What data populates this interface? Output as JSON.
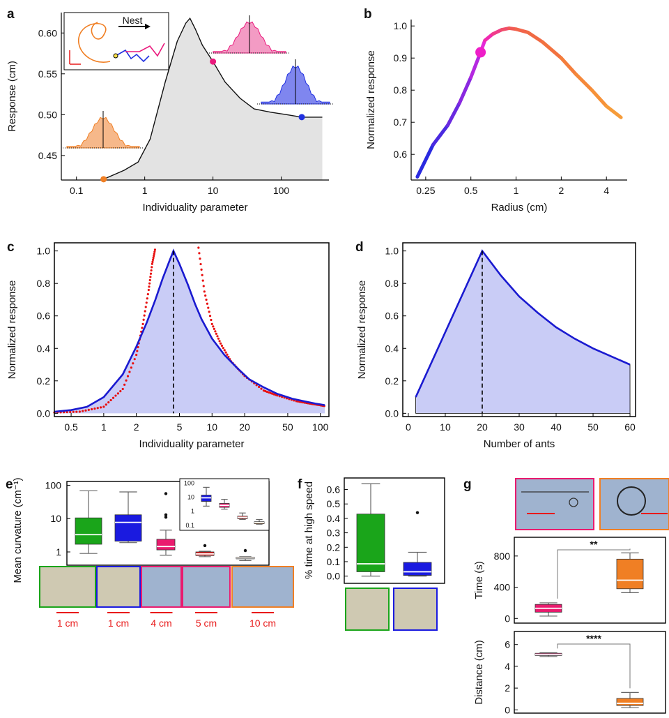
{
  "chart_data": [
    {
      "panel": "a",
      "type": "area",
      "xlabel": "Individuality parameter",
      "ylabel": "Response (cm)",
      "x_scale": "log",
      "x_ticks": [
        "0.1",
        "1",
        "10",
        "100"
      ],
      "y_ticks": [
        "0.45",
        "0.50",
        "0.55",
        "0.60"
      ],
      "xlim": [
        0.06,
        500
      ],
      "ylim": [
        0.42,
        0.625
      ],
      "series": [
        {
          "x": [
            0.25,
            0.5,
            0.8,
            1.2,
            2,
            3,
            4,
            4.6,
            5.5,
            7,
            10,
            15,
            25,
            40,
            70,
            120,
            200,
            400
          ],
          "y": [
            0.421,
            0.432,
            0.442,
            0.47,
            0.54,
            0.59,
            0.612,
            0.618,
            0.605,
            0.585,
            0.565,
            0.54,
            0.52,
            0.507,
            0.503,
            0.5,
            0.497,
            0.497
          ]
        }
      ],
      "markers": [
        {
          "x": 0.25,
          "y": 0.421,
          "color": "#f07f24"
        },
        {
          "x": 10,
          "y": 0.565,
          "color": "#ea1a7d"
        },
        {
          "x": 200,
          "y": 0.497,
          "color": "#2030e0"
        }
      ],
      "inset_label": "Nest"
    },
    {
      "panel": "b",
      "type": "line",
      "xlabel": "Radius (cm)",
      "ylabel": "Normalized response",
      "x_scale": "log",
      "x_ticks": [
        "0.25",
        "0.5",
        "1",
        "2",
        "4"
      ],
      "y_ticks": [
        "0.6",
        "0.7",
        "0.8",
        "0.9",
        "1.0"
      ],
      "xlim": [
        0.2,
        5.5
      ],
      "ylim": [
        0.52,
        1.02
      ],
      "series": [
        {
          "x": [
            0.22,
            0.28,
            0.35,
            0.42,
            0.5,
            0.58,
            0.62,
            0.7,
            0.8,
            0.9,
            1.0,
            1.2,
            1.5,
            2.0,
            2.5,
            3.2,
            4.0,
            5.0
          ],
          "y": [
            0.53,
            0.63,
            0.69,
            0.76,
            0.84,
            0.918,
            0.955,
            0.975,
            0.988,
            0.993,
            0.99,
            0.98,
            0.95,
            0.9,
            0.85,
            0.8,
            0.75,
            0.715
          ]
        }
      ],
      "marker": {
        "x": 0.58,
        "y": 0.918,
        "color": "#ee1ec8"
      }
    },
    {
      "panel": "c",
      "type": "area",
      "xlabel": "Individuality parameter",
      "ylabel": "Normalized response",
      "x_scale": "log",
      "x_ticks": [
        "0.5",
        "1",
        "2",
        "5",
        "10",
        "20",
        "50",
        "100"
      ],
      "y_ticks": [
        "0.0",
        "0.2",
        "0.4",
        "0.6",
        "0.8",
        "1.0"
      ],
      "xlim": [
        0.35,
        120
      ],
      "ylim": [
        -0.02,
        1.05
      ],
      "series": [
        {
          "color": "#1a1ad0",
          "x": [
            0.35,
            0.5,
            0.7,
            1,
            1.5,
            2,
            2.5,
            3,
            3.5,
            4,
            4.4,
            5,
            6,
            7,
            8,
            10,
            13,
            17,
            22,
            30,
            40,
            55,
            70,
            90,
            100,
            110
          ],
          "y": [
            0.01,
            0.02,
            0.04,
            0.1,
            0.24,
            0.41,
            0.56,
            0.7,
            0.83,
            0.93,
            1.0,
            0.92,
            0.79,
            0.67,
            0.58,
            0.46,
            0.36,
            0.28,
            0.21,
            0.16,
            0.12,
            0.09,
            0.075,
            0.06,
            0.055,
            0.05
          ]
        },
        {
          "color": "#e81010",
          "x": [
            0.35,
            0.6,
            1,
            1.5,
            2,
            2.3,
            2.6,
            2.8,
            3.0
          ],
          "y": [
            0.005,
            0.01,
            0.04,
            0.15,
            0.36,
            0.55,
            0.76,
            0.92,
            1.02
          ],
          "style": "dotted"
        },
        {
          "color": "#e81010",
          "x": [
            7.5,
            8.5,
            10,
            12,
            15,
            20,
            30,
            40,
            60,
            80,
            100,
            110
          ],
          "y": [
            1.02,
            0.75,
            0.55,
            0.43,
            0.32,
            0.23,
            0.14,
            0.11,
            0.075,
            0.06,
            0.05,
            0.045
          ],
          "style": "dotted"
        }
      ],
      "peak_x": 4.4
    },
    {
      "panel": "d",
      "type": "area",
      "xlabel": "Number of ants",
      "ylabel": "Normalized response",
      "x_ticks": [
        "0",
        "10",
        "20",
        "30",
        "40",
        "50",
        "60"
      ],
      "y_ticks": [
        "0.0",
        "0.2",
        "0.4",
        "0.6",
        "0.8",
        "1.0"
      ],
      "xlim": [
        -1.5,
        61.5
      ],
      "ylim": [
        -0.02,
        1.05
      ],
      "series": [
        {
          "color": "#1a1ad0",
          "x": [
            2,
            20,
            25,
            30,
            35,
            40,
            45,
            50,
            55,
            60
          ],
          "y": [
            0.1,
            1.0,
            0.85,
            0.72,
            0.62,
            0.53,
            0.46,
            0.4,
            0.35,
            0.3
          ]
        }
      ],
      "peak_x": 20
    },
    {
      "panel": "e",
      "type": "box",
      "ylabel": "Mean curvature (cm⁻¹)",
      "y_scale": "log",
      "y_ticks": [
        "1",
        "10",
        "100"
      ],
      "ylim": [
        0.4,
        130
      ],
      "boxes": [
        {
          "color": "#1aa51a",
          "q1": 1.7,
          "median": 3.3,
          "q3": 10.5,
          "wmin": 0.9,
          "wmax": 68,
          "outliers": []
        },
        {
          "color": "#1a1ae0",
          "q1": 2.1,
          "median": 7.7,
          "q3": 13,
          "wmin": 1.9,
          "wmax": 63,
          "outliers": []
        },
        {
          "color": "#ea1a6e",
          "q1": 1.15,
          "median": 1.45,
          "q3": 2.4,
          "wmin": 0.8,
          "wmax": 4.5,
          "outliers": [
            11,
            13,
            56
          ]
        },
        {
          "color": "#e81a1a",
          "q1": 0.78,
          "median": 0.87,
          "q3": 1.0,
          "wmin": 0.72,
          "wmax": 1.05,
          "outliers": [
            1.55
          ]
        },
        {
          "color": "#f07f24",
          "q1": 0.62,
          "median": 0.66,
          "q3": 0.7,
          "wmin": 0.55,
          "wmax": 0.72,
          "outliers": [
            1.1
          ]
        }
      ],
      "inset_y_ticks": [
        "0.1",
        "1",
        "10",
        "100"
      ],
      "inset_boxes": [
        {
          "color": "#1a1ae0",
          "q1": 5,
          "median": 9,
          "q3": 14,
          "wmin": 2.3,
          "wmax": 50
        },
        {
          "color": "#ea1a6e",
          "q1": 1.9,
          "median": 2.6,
          "q3": 3.6,
          "wmin": 1.4,
          "wmax": 7
        },
        {
          "color": "#e81a1a",
          "q1": 0.3,
          "median": 0.37,
          "q3": 0.45,
          "wmin": 0.26,
          "wmax": 0.75
        },
        {
          "color": "#f07f24",
          "q1": 0.13,
          "median": 0.155,
          "q3": 0.18,
          "wmin": 0.12,
          "wmax": 0.26
        }
      ],
      "photo_scale_labels": [
        "1 cm",
        "1 cm",
        "4 cm",
        "5 cm",
        "10 cm"
      ]
    },
    {
      "panel": "f",
      "type": "box",
      "ylabel": "% time at high speed",
      "y_ticks": [
        "0.0",
        "0.1",
        "0.2",
        "0.3",
        "0.4",
        "0.5",
        "0.6"
      ],
      "ylim": [
        -0.05,
        0.68
      ],
      "boxes": [
        {
          "color": "#1aa51a",
          "q1": 0.03,
          "median": 0.085,
          "q3": 0.43,
          "wmin": 0.0,
          "wmax": 0.64,
          "outliers": []
        },
        {
          "color": "#1a1ae0",
          "q1": 0.005,
          "median": 0.03,
          "q3": 0.095,
          "wmin": 0.0,
          "wmax": 0.165,
          "outliers": [
            0.44
          ]
        }
      ]
    },
    {
      "panel": "g",
      "type": "box",
      "subplots": [
        {
          "ylabel": "Time (s)",
          "y_ticks": [
            "0",
            "400",
            "800"
          ],
          "ylim": [
            -60,
            1040
          ],
          "significance": "**",
          "boxes": [
            {
              "color": "#ea1a6e",
              "q1": 80,
              "median": 130,
              "q3": 180,
              "wmin": 30,
              "wmax": 200
            },
            {
              "color": "#f07f24",
              "q1": 380,
              "median": 490,
              "q3": 760,
              "wmin": 330,
              "wmax": 840
            }
          ]
        },
        {
          "ylabel": "Distance (cm)",
          "y_ticks": [
            "0",
            "2",
            "4",
            "6"
          ],
          "ylim": [
            -0.3,
            7.2
          ],
          "significance": "****",
          "boxes": [
            {
              "color": "#ea1a6e",
              "q1": 5.0,
              "median": 5.1,
              "q3": 5.2,
              "wmin": 4.9,
              "wmax": 5.25
            },
            {
              "color": "#f07f24",
              "q1": 0.4,
              "median": 0.6,
              "q3": 1.05,
              "wmin": 0.2,
              "wmax": 1.6
            }
          ]
        }
      ]
    }
  ],
  "panel_letters": [
    "a",
    "b",
    "c",
    "d",
    "e",
    "f",
    "g"
  ]
}
